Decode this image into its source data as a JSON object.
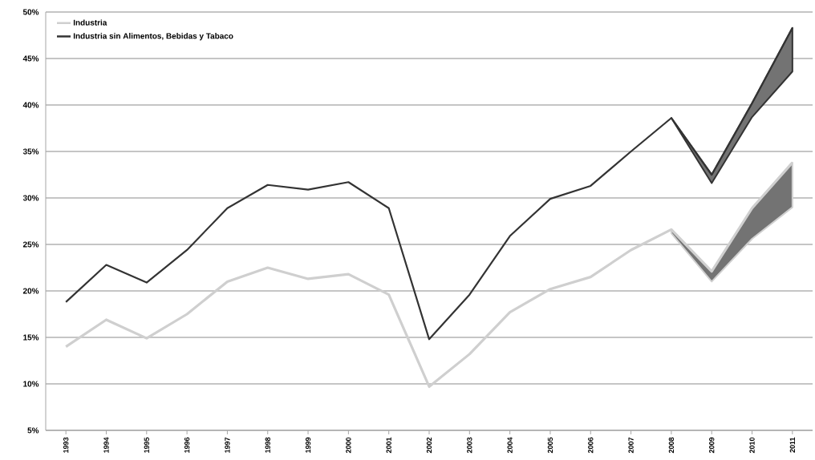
{
  "chart_data": {
    "type": "line",
    "categories": [
      "1993",
      "1994",
      "1995",
      "1996",
      "1997",
      "1998",
      "1999",
      "2000",
      "2001",
      "2002",
      "2003",
      "2004",
      "2005",
      "2006",
      "2007",
      "2008",
      "2009",
      "2010",
      "2011"
    ],
    "series": [
      {
        "name": "Industria",
        "color": "#cfcfcf",
        "values": [
          14.0,
          16.9,
          14.9,
          17.5,
          21.0,
          22.5,
          21.3,
          21.8,
          19.6,
          9.7,
          13.2,
          17.7,
          20.2,
          21.5,
          24.4,
          26.6,
          22.1,
          28.9,
          33.8
        ],
        "lower": [
          null,
          null,
          null,
          null,
          null,
          null,
          null,
          null,
          null,
          null,
          null,
          null,
          null,
          null,
          null,
          26.2,
          21.0,
          25.6,
          29.0
        ],
        "upper": [
          null,
          null,
          null,
          null,
          null,
          null,
          null,
          null,
          null,
          null,
          null,
          null,
          null,
          null,
          null,
          26.6,
          22.1,
          28.9,
          33.8
        ]
      },
      {
        "name": "Industria sin Alimentos, Bebidas y Tabaco",
        "color": "#333333",
        "values": [
          18.8,
          22.8,
          20.9,
          24.4,
          28.9,
          31.4,
          30.9,
          31.7,
          28.9,
          14.8,
          19.6,
          25.9,
          29.9,
          31.3,
          35.0,
          38.6,
          32.5,
          40.2,
          48.3
        ],
        "lower": [
          null,
          null,
          null,
          null,
          null,
          null,
          null,
          null,
          null,
          null,
          null,
          null,
          null,
          null,
          null,
          38.6,
          31.6,
          38.7,
          43.6
        ],
        "upper": [
          null,
          null,
          null,
          null,
          null,
          null,
          null,
          null,
          null,
          null,
          null,
          null,
          null,
          null,
          null,
          38.6,
          32.5,
          40.2,
          48.3
        ]
      }
    ],
    "ylim": [
      5,
      50
    ],
    "yticks": [
      {
        "value": 5,
        "label": "5%"
      },
      {
        "value": 10,
        "label": "10%"
      },
      {
        "value": 15,
        "label": "15%"
      },
      {
        "value": 20,
        "label": "20%"
      },
      {
        "value": 25,
        "label": "25%"
      },
      {
        "value": 30,
        "label": "30%"
      },
      {
        "value": 35,
        "label": "35%"
      },
      {
        "value": 40,
        "label": "40%"
      },
      {
        "value": 45,
        "label": "45%"
      },
      {
        "value": 50,
        "label": "50%"
      }
    ],
    "grid": "y",
    "legend": "top left",
    "marker": "none",
    "line_style": "solid"
  }
}
